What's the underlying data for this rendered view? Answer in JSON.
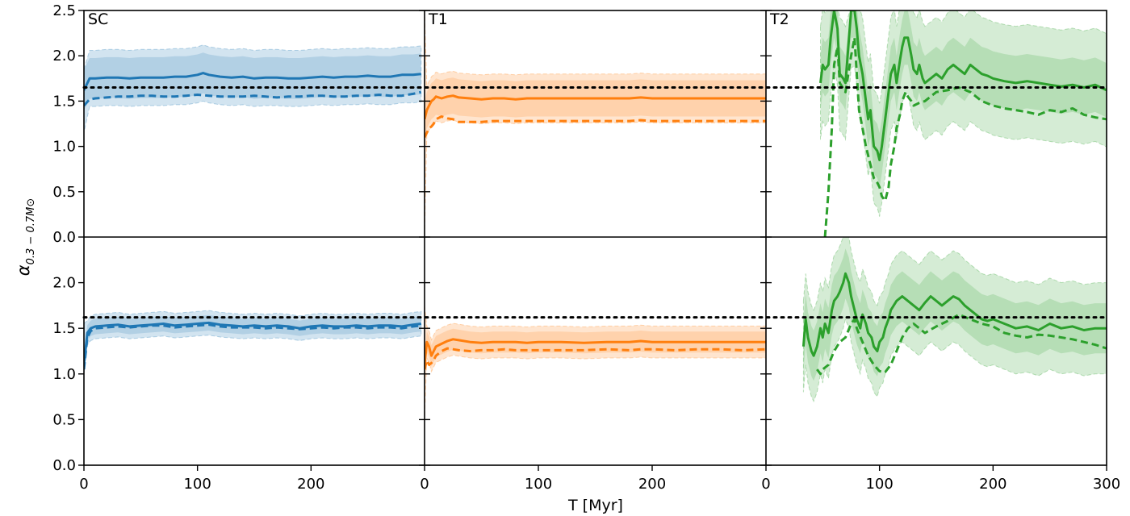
{
  "chart_data": {
    "type": "line",
    "layout": "2 rows x 3 columns, shared axes",
    "xlabel": "T [Myr]",
    "ylabel": "α_{0.3−0.7M⊙}",
    "ylabel_main": "α",
    "ylabel_sub": "0.3 − 0.7M⊙",
    "xlim": [
      0,
      300
    ],
    "ylim": [
      0,
      2.5
    ],
    "x_ticks": [
      "0",
      "100",
      "200",
      "300"
    ],
    "y_ticks_top": [
      "0.0",
      "0.5",
      "1.0",
      "1.5",
      "2.0",
      "2.5"
    ],
    "y_ticks_bottom": [
      "0.0",
      "0.5",
      "1.0",
      "1.5",
      "2.0"
    ],
    "reference_lines": [
      {
        "row": "top",
        "y": 1.65,
        "style": "dotted",
        "color": "#000000"
      },
      {
        "row": "bottom",
        "y": 1.62,
        "style": "dotted",
        "color": "#000000"
      }
    ],
    "panels": [
      {
        "label": "SC",
        "row": "top",
        "color": "#1f77b4",
        "solid": {
          "x": [
            0,
            5,
            10,
            20,
            30,
            40,
            50,
            60,
            70,
            80,
            90,
            100,
            105,
            110,
            120,
            130,
            140,
            150,
            160,
            170,
            180,
            190,
            200,
            210,
            220,
            230,
            240,
            250,
            260,
            270,
            280,
            290,
            297
          ],
          "y": [
            1.62,
            1.75,
            1.75,
            1.76,
            1.76,
            1.75,
            1.76,
            1.76,
            1.76,
            1.77,
            1.77,
            1.79,
            1.81,
            1.79,
            1.77,
            1.76,
            1.77,
            1.75,
            1.76,
            1.76,
            1.75,
            1.75,
            1.76,
            1.77,
            1.76,
            1.77,
            1.77,
            1.78,
            1.77,
            1.77,
            1.79,
            1.79,
            1.8
          ]
        },
        "dashed": {
          "x": [
            0,
            5,
            10,
            20,
            30,
            40,
            50,
            60,
            70,
            80,
            90,
            100,
            110,
            120,
            130,
            140,
            150,
            160,
            170,
            180,
            190,
            200,
            210,
            220,
            230,
            240,
            250,
            260,
            270,
            280,
            290,
            297
          ],
          "y": [
            1.45,
            1.52,
            1.53,
            1.54,
            1.55,
            1.55,
            1.56,
            1.56,
            1.55,
            1.55,
            1.56,
            1.57,
            1.56,
            1.55,
            1.55,
            1.55,
            1.56,
            1.55,
            1.54,
            1.55,
            1.55,
            1.56,
            1.56,
            1.55,
            1.55,
            1.56,
            1.56,
            1.57,
            1.56,
            1.56,
            1.58,
            1.6
          ]
        },
        "band_outer": {
          "lower": 1.33,
          "upper": 1.95,
          "lower_start": 1.15,
          "upper_start": 1.85
        },
        "band_inner": {
          "lower": 1.43,
          "upper": 1.88
        }
      },
      {
        "label": "T1",
        "row": "top",
        "color": "#ff7f0e",
        "solid": {
          "x": [
            0,
            2,
            4,
            6,
            8,
            10,
            15,
            20,
            25,
            30,
            40,
            50,
            60,
            70,
            80,
            90,
            100,
            120,
            140,
            160,
            180,
            190,
            200,
            220,
            240,
            260,
            280,
            300
          ],
          "y": [
            1.3,
            1.4,
            1.45,
            1.5,
            1.52,
            1.55,
            1.53,
            1.55,
            1.56,
            1.54,
            1.53,
            1.52,
            1.53,
            1.53,
            1.52,
            1.53,
            1.53,
            1.53,
            1.53,
            1.53,
            1.53,
            1.54,
            1.53,
            1.53,
            1.53,
            1.53,
            1.53,
            1.53
          ]
        },
        "dashed": {
          "x": [
            0,
            2,
            4,
            6,
            8,
            10,
            15,
            20,
            25,
            30,
            40,
            50,
            60,
            70,
            80,
            90,
            100,
            120,
            140,
            160,
            180,
            190,
            200,
            220,
            240,
            260,
            280,
            300
          ],
          "y": [
            1.1,
            1.15,
            1.2,
            1.22,
            1.25,
            1.3,
            1.33,
            1.31,
            1.3,
            1.27,
            1.27,
            1.27,
            1.28,
            1.28,
            1.28,
            1.28,
            1.28,
            1.28,
            1.28,
            1.28,
            1.28,
            1.29,
            1.28,
            1.28,
            1.28,
            1.28,
            1.28,
            1.28
          ]
        },
        "band_outer": {
          "lower": 1.13,
          "upper": 1.67,
          "lower_start": 0.0,
          "upper_start": 2.5
        },
        "band_inner": {
          "lower": 1.2,
          "upper": 1.6
        }
      },
      {
        "label": "T2",
        "row": "top",
        "color": "#2ca02c",
        "solid": {
          "x": [
            48,
            50,
            52,
            55,
            57,
            60,
            63,
            65,
            68,
            70,
            75,
            78,
            80,
            82,
            85,
            88,
            90,
            92,
            95,
            98,
            100,
            102,
            105,
            108,
            110,
            113,
            115,
            118,
            120,
            122,
            125,
            128,
            130,
            133,
            135,
            138,
            140,
            145,
            150,
            155,
            160,
            165,
            170,
            175,
            180,
            185,
            190,
            195,
            200,
            210,
            220,
            230,
            240,
            250,
            260,
            270,
            280,
            290,
            300
          ],
          "y": [
            1.7,
            1.9,
            1.85,
            1.9,
            2.2,
            2.5,
            2.3,
            1.8,
            1.75,
            1.7,
            2.5,
            2.5,
            2.3,
            2.0,
            1.8,
            1.5,
            1.3,
            1.4,
            1.0,
            0.95,
            0.85,
            1.0,
            1.3,
            1.6,
            1.8,
            1.9,
            1.7,
            1.95,
            2.1,
            2.2,
            2.2,
            2.0,
            1.85,
            1.8,
            1.9,
            1.75,
            1.7,
            1.75,
            1.8,
            1.75,
            1.85,
            1.9,
            1.85,
            1.8,
            1.9,
            1.85,
            1.8,
            1.78,
            1.75,
            1.72,
            1.7,
            1.72,
            1.7,
            1.68,
            1.66,
            1.68,
            1.65,
            1.68,
            1.62
          ]
        },
        "dashed": {
          "x": [
            52,
            55,
            58,
            60,
            63,
            65,
            70,
            75,
            78,
            80,
            82,
            85,
            88,
            90,
            92,
            95,
            98,
            100,
            102,
            105,
            108,
            110,
            113,
            115,
            118,
            120,
            123,
            125,
            128,
            130,
            135,
            140,
            145,
            150,
            160,
            170,
            180,
            190,
            200,
            210,
            220,
            230,
            240,
            250,
            260,
            270,
            280,
            290,
            300
          ],
          "y": [
            0.0,
            0.5,
            1.2,
            1.9,
            2.1,
            1.7,
            1.6,
            2.0,
            2.2,
            1.8,
            1.4,
            1.2,
            1.0,
            0.9,
            0.8,
            0.65,
            0.6,
            0.55,
            0.45,
            0.4,
            0.55,
            0.8,
            1.0,
            1.2,
            1.35,
            1.5,
            1.6,
            1.55,
            1.5,
            1.45,
            1.48,
            1.5,
            1.55,
            1.6,
            1.62,
            1.65,
            1.6,
            1.5,
            1.45,
            1.42,
            1.4,
            1.38,
            1.35,
            1.4,
            1.38,
            1.42,
            1.35,
            1.32,
            1.3
          ]
        },
        "band_outer": {
          "lower": 0.85,
          "upper": 2.1
        },
        "band_inner": {
          "lower": 1.25,
          "upper": 1.85
        }
      },
      {
        "label": "",
        "row": "bottom",
        "color": "#1f77b4",
        "solid": {
          "x": [
            0,
            3,
            6,
            10,
            20,
            30,
            40,
            50,
            60,
            70,
            80,
            90,
            100,
            110,
            120,
            130,
            140,
            150,
            160,
            170,
            180,
            190,
            200,
            210,
            220,
            230,
            240,
            250,
            260,
            270,
            280,
            290,
            297
          ],
          "y": [
            1.1,
            1.45,
            1.5,
            1.52,
            1.53,
            1.54,
            1.52,
            1.53,
            1.54,
            1.55,
            1.53,
            1.54,
            1.55,
            1.56,
            1.54,
            1.53,
            1.52,
            1.53,
            1.52,
            1.53,
            1.52,
            1.5,
            1.52,
            1.53,
            1.52,
            1.52,
            1.53,
            1.52,
            1.53,
            1.53,
            1.52,
            1.54,
            1.55
          ]
        },
        "dashed": {
          "x": [
            0,
            3,
            6,
            10,
            20,
            30,
            40,
            50,
            60,
            70,
            80,
            90,
            100,
            110,
            120,
            130,
            140,
            150,
            160,
            170,
            180,
            190,
            200,
            210,
            220,
            230,
            240,
            250,
            260,
            270,
            280,
            290,
            297
          ],
          "y": [
            1.05,
            1.4,
            1.47,
            1.5,
            1.51,
            1.52,
            1.51,
            1.52,
            1.53,
            1.53,
            1.51,
            1.52,
            1.53,
            1.54,
            1.52,
            1.51,
            1.51,
            1.51,
            1.5,
            1.51,
            1.5,
            1.49,
            1.5,
            1.51,
            1.5,
            1.51,
            1.51,
            1.5,
            1.51,
            1.51,
            1.5,
            1.52,
            1.53
          ]
        },
        "band_outer": {
          "lower": 1.4,
          "upper": 1.67,
          "lower_start": 1.0,
          "upper_start": 1.55
        },
        "band_inner": {
          "lower": 1.45,
          "upper": 1.62
        }
      },
      {
        "label": "",
        "row": "bottom",
        "color": "#ff7f0e",
        "solid": {
          "x": [
            0,
            2,
            4,
            6,
            8,
            10,
            15,
            20,
            25,
            30,
            40,
            50,
            60,
            70,
            80,
            90,
            100,
            120,
            140,
            160,
            180,
            190,
            200,
            220,
            240,
            260,
            280,
            300
          ],
          "y": [
            1.1,
            1.35,
            1.3,
            1.2,
            1.25,
            1.3,
            1.33,
            1.36,
            1.38,
            1.37,
            1.35,
            1.34,
            1.35,
            1.35,
            1.35,
            1.34,
            1.35,
            1.35,
            1.34,
            1.35,
            1.35,
            1.36,
            1.35,
            1.35,
            1.35,
            1.35,
            1.35,
            1.35
          ]
        },
        "dashed": {
          "x": [
            0,
            2,
            4,
            6,
            8,
            10,
            15,
            20,
            25,
            30,
            40,
            50,
            60,
            70,
            80,
            90,
            100,
            120,
            140,
            160,
            180,
            190,
            200,
            220,
            240,
            260,
            280,
            300
          ],
          "y": [
            1.05,
            1.15,
            1.1,
            1.12,
            1.15,
            1.2,
            1.25,
            1.28,
            1.27,
            1.26,
            1.25,
            1.26,
            1.26,
            1.27,
            1.26,
            1.26,
            1.26,
            1.26,
            1.26,
            1.27,
            1.26,
            1.27,
            1.27,
            1.26,
            1.27,
            1.27,
            1.26,
            1.27
          ]
        },
        "band_outer": {
          "lower": 1.15,
          "upper": 1.5,
          "lower_start": 0.5,
          "upper_start": 1.75
        },
        "band_inner": {
          "lower": 1.2,
          "upper": 1.43
        }
      },
      {
        "label": "",
        "row": "bottom",
        "color": "#2ca02c",
        "solid": {
          "x": [
            33,
            35,
            37,
            40,
            42,
            45,
            48,
            50,
            52,
            55,
            58,
            60,
            63,
            65,
            68,
            70,
            73,
            75,
            78,
            80,
            83,
            85,
            88,
            90,
            93,
            95,
            98,
            100,
            103,
            105,
            108,
            110,
            115,
            120,
            125,
            130,
            135,
            140,
            145,
            150,
            155,
            160,
            165,
            170,
            175,
            180,
            185,
            190,
            195,
            200,
            210,
            220,
            230,
            240,
            250,
            260,
            270,
            280,
            290,
            300
          ],
          "y": [
            1.3,
            1.6,
            1.4,
            1.25,
            1.2,
            1.3,
            1.5,
            1.4,
            1.55,
            1.45,
            1.7,
            1.8,
            1.85,
            1.9,
            2.0,
            2.1,
            2.0,
            1.85,
            1.7,
            1.6,
            1.5,
            1.65,
            1.55,
            1.45,
            1.4,
            1.3,
            1.25,
            1.35,
            1.4,
            1.5,
            1.6,
            1.7,
            1.8,
            1.85,
            1.8,
            1.75,
            1.7,
            1.78,
            1.85,
            1.8,
            1.75,
            1.8,
            1.85,
            1.82,
            1.75,
            1.7,
            1.65,
            1.6,
            1.58,
            1.6,
            1.55,
            1.5,
            1.52,
            1.48,
            1.55,
            1.5,
            1.52,
            1.48,
            1.5,
            1.5
          ]
        },
        "dashed": {
          "x": [
            45,
            48,
            50,
            55,
            60,
            65,
            70,
            75,
            78,
            80,
            85,
            90,
            95,
            100,
            105,
            110,
            115,
            120,
            125,
            130,
            135,
            140,
            150,
            160,
            170,
            180,
            190,
            200,
            210,
            220,
            230,
            240,
            250,
            260,
            270,
            280,
            290,
            300
          ],
          "y": [
            1.05,
            1.0,
            1.05,
            1.1,
            1.25,
            1.35,
            1.4,
            1.55,
            1.6,
            1.5,
            1.35,
            1.2,
            1.1,
            1.03,
            1.02,
            1.1,
            1.25,
            1.4,
            1.5,
            1.55,
            1.5,
            1.45,
            1.52,
            1.58,
            1.65,
            1.6,
            1.55,
            1.52,
            1.45,
            1.42,
            1.4,
            1.43,
            1.42,
            1.4,
            1.38,
            1.35,
            1.32,
            1.28
          ]
        },
        "band_outer": {
          "lower": 1.05,
          "upper": 2.05
        },
        "band_inner": {
          "lower": 1.25,
          "upper": 1.8
        }
      }
    ]
  }
}
